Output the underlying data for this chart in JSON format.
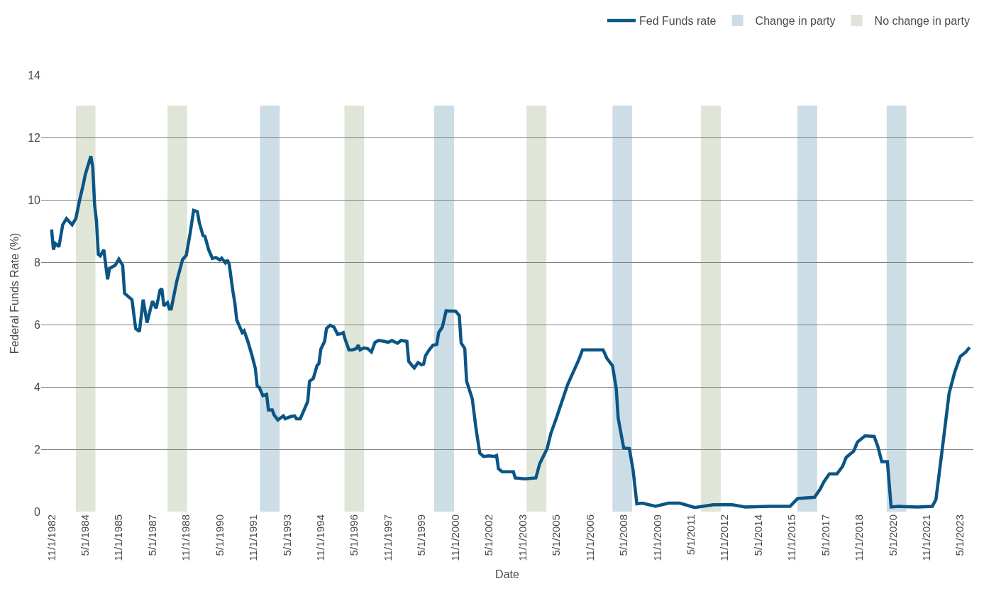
{
  "chart_data": {
    "type": "line",
    "xlabel": "Date",
    "ylabel": "Federal Funds Rate (%)",
    "x": [
      "1982-11",
      "1982-12",
      "1983-01",
      "1983-03",
      "1983-05",
      "1983-07",
      "1983-10",
      "1983-12",
      "1984-02",
      "1984-04",
      "1984-05",
      "1984-08",
      "1984-09",
      "1984-10",
      "1984-11",
      "1984-12",
      "1985-01",
      "1985-03",
      "1985-04",
      "1985-05",
      "1985-06",
      "1985-09",
      "1985-11",
      "1986-01",
      "1986-02",
      "1986-04",
      "1986-06",
      "1986-08",
      "1986-10",
      "1986-12",
      "1987-02",
      "1987-05",
      "1987-07",
      "1987-09",
      "1987-10",
      "1987-11",
      "1988-01",
      "1988-02",
      "1988-03",
      "1988-06",
      "1988-09",
      "1988-11",
      "1989-01",
      "1989-03",
      "1989-05",
      "1989-06",
      "1989-08",
      "1989-09",
      "1989-11",
      "1990-01",
      "1990-03",
      "1990-05",
      "1990-06",
      "1990-08",
      "1990-09",
      "1990-10",
      "1990-12",
      "1991-01",
      "1991-02",
      "1991-03",
      "1991-05",
      "1991-06",
      "1991-08",
      "1991-10",
      "1991-12",
      "1992-01",
      "1992-02",
      "1992-04",
      "1992-06",
      "1992-07",
      "1992-09",
      "1992-10",
      "1992-12",
      "1993-03",
      "1993-04",
      "1993-07",
      "1993-09",
      "1993-10",
      "1993-12",
      "1994-02",
      "1994-04",
      "1994-05",
      "1994-07",
      "1994-09",
      "1994-10",
      "1994-11",
      "1995-01",
      "1995-02",
      "1995-04",
      "1995-06",
      "1995-08",
      "1995-10",
      "1995-11",
      "1995-12",
      "1996-02",
      "1996-04",
      "1996-06",
      "1996-07",
      "1996-08",
      "1996-10",
      "1996-12",
      "1997-02",
      "1997-04",
      "1997-06",
      "1997-09",
      "1997-11",
      "1998-01",
      "1998-04",
      "1998-06",
      "1998-09",
      "1998-10",
      "1998-12",
      "1999-01",
      "1999-03",
      "1999-05",
      "1999-06",
      "1999-07",
      "1999-09",
      "1999-11",
      "2000-01",
      "2000-02",
      "2000-04",
      "2000-06",
      "2000-09",
      "2000-11",
      "2001-01",
      "2001-02",
      "2001-04",
      "2001-05",
      "2001-07",
      "2001-08",
      "2001-10",
      "2001-12",
      "2002-02",
      "2002-05",
      "2002-08",
      "2002-09",
      "2002-10",
      "2002-12",
      "2003-06",
      "2003-07",
      "2003-12",
      "2004-06",
      "2004-08",
      "2004-12",
      "2005-02",
      "2005-05",
      "2005-08",
      "2005-11",
      "2006-02",
      "2006-05",
      "2006-07",
      "2007-01",
      "2007-06",
      "2007-08",
      "2007-11",
      "2008-01",
      "2008-02",
      "2008-05",
      "2008-08",
      "2008-10",
      "2008-12",
      "2009-03",
      "2009-10",
      "2010-05",
      "2010-11",
      "2011-07",
      "2012-05",
      "2013-03",
      "2013-10",
      "2014-11",
      "2015-10",
      "2016-02",
      "2016-11",
      "2017-02",
      "2017-04",
      "2017-07",
      "2017-11",
      "2018-02",
      "2018-04",
      "2018-08",
      "2018-10",
      "2019-02",
      "2019-07",
      "2019-09",
      "2019-11",
      "2020-02",
      "2020-04",
      "2020-08",
      "2021-06",
      "2022-02",
      "2022-04",
      "2022-08",
      "2022-11",
      "2023-02",
      "2023-05",
      "2023-08",
      "2023-10"
    ],
    "series": [
      {
        "name": "Fed Funds rate",
        "color": "#0b5585",
        "values": [
          9.05,
          8.4,
          8.6,
          8.5,
          9.2,
          9.4,
          9.2,
          9.4,
          10.0,
          10.5,
          10.8,
          11.4,
          11.05,
          9.85,
          9.3,
          8.25,
          8.2,
          8.4,
          7.9,
          7.45,
          7.8,
          7.9,
          8.1,
          7.9,
          7.0,
          6.9,
          6.8,
          5.87,
          5.78,
          6.8,
          6.06,
          6.75,
          6.52,
          7.1,
          7.15,
          6.6,
          6.7,
          6.5,
          6.5,
          7.4,
          8.08,
          8.22,
          8.9,
          9.66,
          9.62,
          9.27,
          8.85,
          8.83,
          8.4,
          8.12,
          8.15,
          8.07,
          8.13,
          7.98,
          8.07,
          7.94,
          7.06,
          6.69,
          6.15,
          6.02,
          5.74,
          5.8,
          5.46,
          5.05,
          4.59,
          4.02,
          3.99,
          3.72,
          3.76,
          3.26,
          3.26,
          3.1,
          2.94,
          3.07,
          2.98,
          3.05,
          3.07,
          2.98,
          2.98,
          3.26,
          3.53,
          4.18,
          4.27,
          4.69,
          4.75,
          5.21,
          5.46,
          5.87,
          5.98,
          5.92,
          5.69,
          5.71,
          5.74,
          5.53,
          5.19,
          5.19,
          5.23,
          5.34,
          5.19,
          5.25,
          5.23,
          5.12,
          5.43,
          5.49,
          5.46,
          5.43,
          5.49,
          5.4,
          5.49,
          5.46,
          4.82,
          4.67,
          4.61,
          4.78,
          4.71,
          4.73,
          5.0,
          5.19,
          5.34,
          5.36,
          5.74,
          5.92,
          6.44,
          6.43,
          6.43,
          6.29,
          5.41,
          5.23,
          4.18,
          3.81,
          3.62,
          2.66,
          1.88,
          1.77,
          1.79,
          1.77,
          1.8,
          1.38,
          1.28,
          1.28,
          1.08,
          1.05,
          1.08,
          1.53,
          2.02,
          2.51,
          3.0,
          3.54,
          4.08,
          4.48,
          4.87,
          5.19,
          5.19,
          5.19,
          4.92,
          4.68,
          3.94,
          3.0,
          2.04,
          2.02,
          1.33,
          0.25,
          0.27,
          0.17,
          0.27,
          0.27,
          0.13,
          0.22,
          0.22,
          0.15,
          0.17,
          0.17,
          0.42,
          0.46,
          0.72,
          0.95,
          1.21,
          1.21,
          1.45,
          1.74,
          1.94,
          2.23,
          2.43,
          2.41,
          2.07,
          1.6,
          1.6,
          0.15,
          0.17,
          0.15,
          0.17,
          0.39,
          2.31,
          3.79,
          4.48,
          4.97,
          5.12,
          5.27
        ]
      }
    ],
    "bands": [
      {
        "axis": "x",
        "from": "1992-02-15",
        "to": "1993-01-01",
        "label": "Change in party",
        "color": "#cddde6"
      },
      {
        "axis": "x",
        "from": "1999-11-20",
        "to": "2000-10-10",
        "color": "#cddde6"
      },
      {
        "axis": "x",
        "from": "2007-11-01",
        "to": "2008-09-15",
        "color": "#cddde6"
      },
      {
        "axis": "x",
        "from": "2016-01-28",
        "to": "2016-12-15",
        "color": "#cddde6"
      },
      {
        "axis": "x",
        "from": "2020-01-20",
        "to": "2020-12-05",
        "color": "#cddde6"
      },
      {
        "axis": "x",
        "from": "1983-12-01",
        "to": "1984-10-15",
        "label": "No change in party",
        "color": "#dfe5d7"
      },
      {
        "axis": "x",
        "from": "1988-01-01",
        "to": "1988-11-15",
        "color": "#dfe5d7"
      },
      {
        "axis": "x",
        "from": "1995-11-20",
        "to": "1996-10-05",
        "color": "#dfe5d7"
      },
      {
        "axis": "x",
        "from": "2004-01-01",
        "to": "2004-11-20",
        "color": "#dfe5d7"
      },
      {
        "axis": "x",
        "from": "2011-10-10",
        "to": "2012-08-28",
        "color": "#dfe5d7"
      }
    ],
    "xlim": [
      "1982-05-15",
      "2023-12-01"
    ],
    "xticks": [
      {
        "value": "1982-11-01",
        "label": "11/1/1982"
      },
      {
        "value": "1984-05-01",
        "label": "5/1/1984"
      },
      {
        "value": "1985-11-01",
        "label": "11/1/1985"
      },
      {
        "value": "1987-05-01",
        "label": "5/1/1987"
      },
      {
        "value": "1988-11-01",
        "label": "11/1/1988"
      },
      {
        "value": "1990-05-01",
        "label": "5/1/1990"
      },
      {
        "value": "1991-11-01",
        "label": "11/1/1991"
      },
      {
        "value": "1993-05-01",
        "label": "5/1/1993"
      },
      {
        "value": "1994-11-01",
        "label": "11/1/1994"
      },
      {
        "value": "1996-05-01",
        "label": "5/1/1996"
      },
      {
        "value": "1997-11-01",
        "label": "11/1/1997"
      },
      {
        "value": "1999-05-01",
        "label": "5/1/1999"
      },
      {
        "value": "2000-11-01",
        "label": "11/1/2000"
      },
      {
        "value": "2002-05-01",
        "label": "5/1/2002"
      },
      {
        "value": "2003-11-01",
        "label": "11/1/2003"
      },
      {
        "value": "2005-05-01",
        "label": "5/1/2005"
      },
      {
        "value": "2006-11-01",
        "label": "11/1/2006"
      },
      {
        "value": "2008-05-01",
        "label": "5/1/2008"
      },
      {
        "value": "2009-11-01",
        "label": "11/1/2009"
      },
      {
        "value": "2011-05-01",
        "label": "5/1/2011"
      },
      {
        "value": "2012-11-01",
        "label": "11/1/2012"
      },
      {
        "value": "2014-05-01",
        "label": "5/1/2014"
      },
      {
        "value": "2015-11-01",
        "label": "11/1/2015"
      },
      {
        "value": "2017-05-01",
        "label": "5/1/2017"
      },
      {
        "value": "2018-11-01",
        "label": "11/1/2018"
      },
      {
        "value": "2020-05-01",
        "label": "5/1/2020"
      },
      {
        "value": "2021-11-01",
        "label": "11/1/2021"
      },
      {
        "value": "2023-05-01",
        "label": "5/1/2023"
      }
    ],
    "ylim": [
      0,
      14
    ],
    "yticks": [
      0,
      2,
      4,
      6,
      8,
      10,
      12,
      14
    ],
    "grid": "y",
    "legend": "top right",
    "marker": "none",
    "line_style": "solid"
  }
}
